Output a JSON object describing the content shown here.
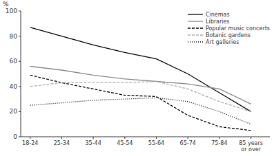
{
  "chart_data": {
    "type": "line",
    "ylabel": "%",
    "categories": [
      "18-24",
      "25-34",
      "35-44",
      "45-54",
      "55-64",
      "65-74",
      "75-84",
      "85 years\nor over"
    ],
    "series": [
      {
        "name": "Cinemas",
        "color": "#000000",
        "line_style": "solid",
        "values": [
          87,
          80,
          73,
          67,
          62,
          50,
          35,
          20
        ]
      },
      {
        "name": "Libraries",
        "color": "#888888",
        "line_style": "solid",
        "values": [
          56,
          53,
          49,
          46,
          44,
          42,
          38,
          26
        ]
      },
      {
        "name": "Popular music concerts",
        "color": "#000000",
        "line_style": "dashed",
        "values": [
          49,
          43,
          38,
          33,
          32,
          17,
          8,
          5
        ]
      },
      {
        "name": "Botanic gardens",
        "color": "#aaaaaa",
        "line_style": "dashed",
        "values": [
          40,
          43,
          43,
          43,
          44,
          38,
          28,
          20
        ]
      },
      {
        "name": "Art galleries",
        "color": "#000000",
        "line_style": "dotted",
        "values": [
          25,
          27,
          29,
          30,
          31,
          28,
          20,
          10
        ]
      }
    ],
    "ylim": [
      0,
      100
    ],
    "yticks": [
      0,
      20,
      40,
      60,
      80,
      100
    ],
    "grid": false,
    "legend": "upper right"
  }
}
